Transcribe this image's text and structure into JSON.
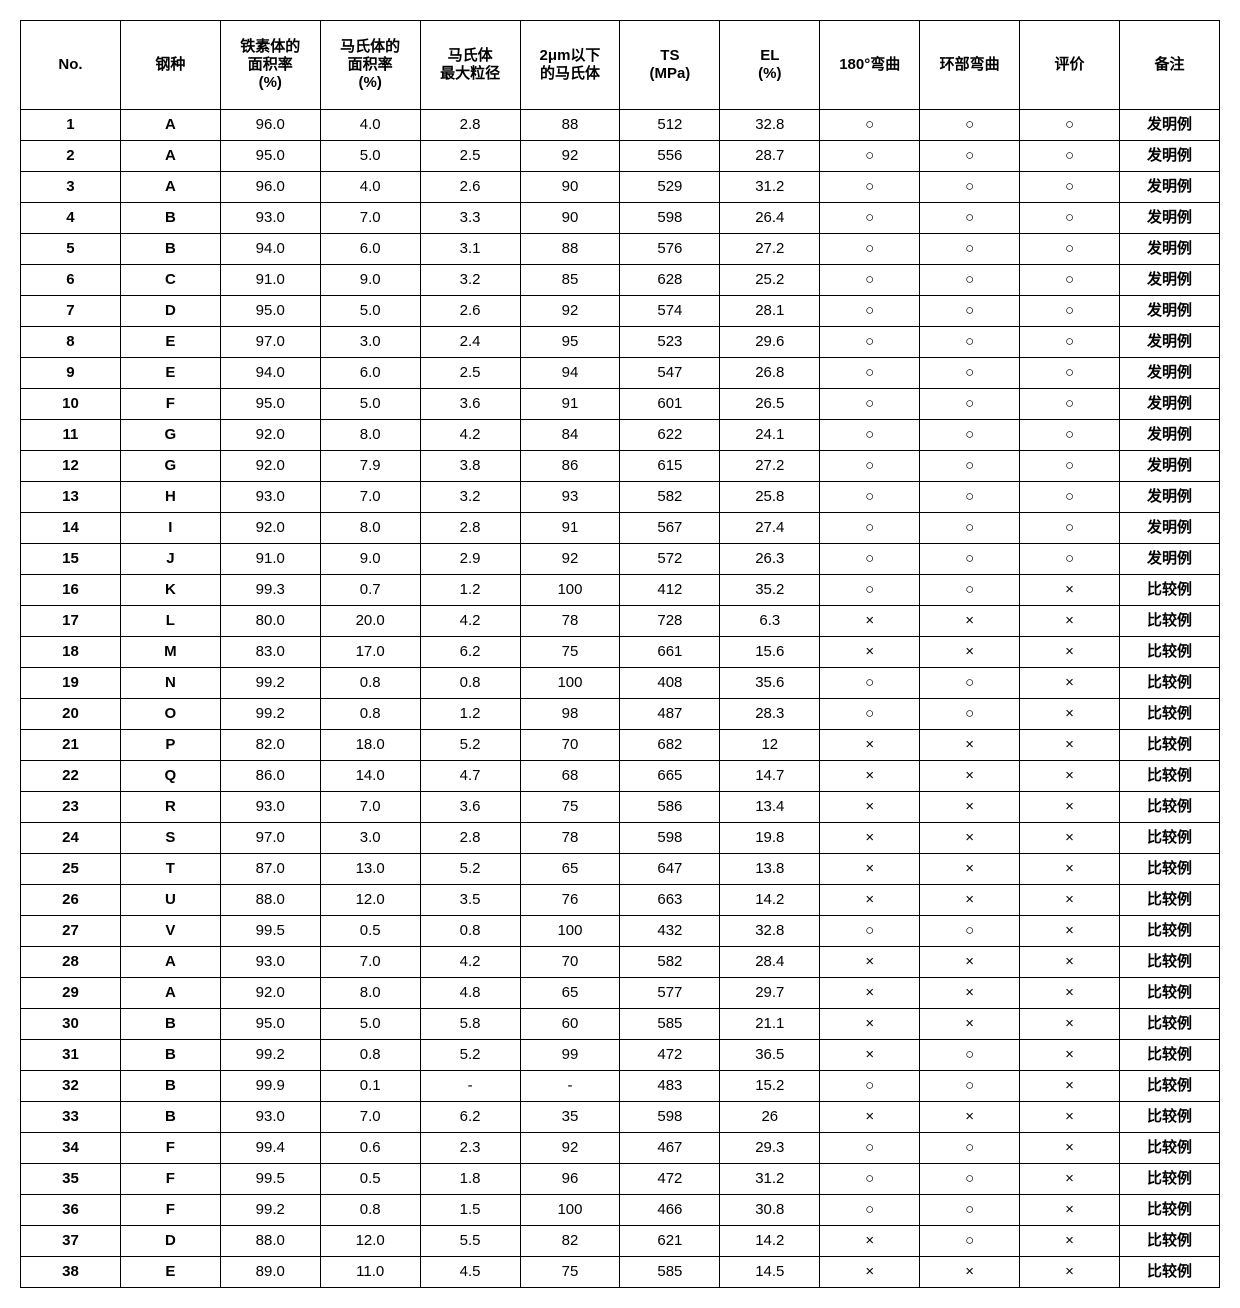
{
  "table": {
    "columns": [
      "No.",
      "钢种",
      "铁素体的\n面积率\n(%)",
      "马氏体的\n面积率\n(%)",
      "马氏体\n最大粒径",
      "2μm以下\n的马氏体",
      "TS\n(MPa)",
      "EL\n(%)",
      "180°弯曲",
      "环部弯曲",
      "评价",
      "备注"
    ],
    "rows": [
      [
        "1",
        "A",
        "96.0",
        "4.0",
        "2.8",
        "88",
        "512",
        "32.8",
        "○",
        "○",
        "○",
        "发明例"
      ],
      [
        "2",
        "A",
        "95.0",
        "5.0",
        "2.5",
        "92",
        "556",
        "28.7",
        "○",
        "○",
        "○",
        "发明例"
      ],
      [
        "3",
        "A",
        "96.0",
        "4.0",
        "2.6",
        "90",
        "529",
        "31.2",
        "○",
        "○",
        "○",
        "发明例"
      ],
      [
        "4",
        "B",
        "93.0",
        "7.0",
        "3.3",
        "90",
        "598",
        "26.4",
        "○",
        "○",
        "○",
        "发明例"
      ],
      [
        "5",
        "B",
        "94.0",
        "6.0",
        "3.1",
        "88",
        "576",
        "27.2",
        "○",
        "○",
        "○",
        "发明例"
      ],
      [
        "6",
        "C",
        "91.0",
        "9.0",
        "3.2",
        "85",
        "628",
        "25.2",
        "○",
        "○",
        "○",
        "发明例"
      ],
      [
        "7",
        "D",
        "95.0",
        "5.0",
        "2.6",
        "92",
        "574",
        "28.1",
        "○",
        "○",
        "○",
        "发明例"
      ],
      [
        "8",
        "E",
        "97.0",
        "3.0",
        "2.4",
        "95",
        "523",
        "29.6",
        "○",
        "○",
        "○",
        "发明例"
      ],
      [
        "9",
        "E",
        "94.0",
        "6.0",
        "2.5",
        "94",
        "547",
        "26.8",
        "○",
        "○",
        "○",
        "发明例"
      ],
      [
        "10",
        "F",
        "95.0",
        "5.0",
        "3.6",
        "91",
        "601",
        "26.5",
        "○",
        "○",
        "○",
        "发明例"
      ],
      [
        "11",
        "G",
        "92.0",
        "8.0",
        "4.2",
        "84",
        "622",
        "24.1",
        "○",
        "○",
        "○",
        "发明例"
      ],
      [
        "12",
        "G",
        "92.0",
        "7.9",
        "3.8",
        "86",
        "615",
        "27.2",
        "○",
        "○",
        "○",
        "发明例"
      ],
      [
        "13",
        "H",
        "93.0",
        "7.0",
        "3.2",
        "93",
        "582",
        "25.8",
        "○",
        "○",
        "○",
        "发明例"
      ],
      [
        "14",
        "I",
        "92.0",
        "8.0",
        "2.8",
        "91",
        "567",
        "27.4",
        "○",
        "○",
        "○",
        "发明例"
      ],
      [
        "15",
        "J",
        "91.0",
        "9.0",
        "2.9",
        "92",
        "572",
        "26.3",
        "○",
        "○",
        "○",
        "发明例"
      ],
      [
        "16",
        "K",
        "99.3",
        "0.7",
        "1.2",
        "100",
        "412",
        "35.2",
        "○",
        "○",
        "×",
        "比较例"
      ],
      [
        "17",
        "L",
        "80.0",
        "20.0",
        "4.2",
        "78",
        "728",
        "6.3",
        "×",
        "×",
        "×",
        "比较例"
      ],
      [
        "18",
        "M",
        "83.0",
        "17.0",
        "6.2",
        "75",
        "661",
        "15.6",
        "×",
        "×",
        "×",
        "比较例"
      ],
      [
        "19",
        "N",
        "99.2",
        "0.8",
        "0.8",
        "100",
        "408",
        "35.6",
        "○",
        "○",
        "×",
        "比较例"
      ],
      [
        "20",
        "O",
        "99.2",
        "0.8",
        "1.2",
        "98",
        "487",
        "28.3",
        "○",
        "○",
        "×",
        "比较例"
      ],
      [
        "21",
        "P",
        "82.0",
        "18.0",
        "5.2",
        "70",
        "682",
        "12",
        "×",
        "×",
        "×",
        "比较例"
      ],
      [
        "22",
        "Q",
        "86.0",
        "14.0",
        "4.7",
        "68",
        "665",
        "14.7",
        "×",
        "×",
        "×",
        "比较例"
      ],
      [
        "23",
        "R",
        "93.0",
        "7.0",
        "3.6",
        "75",
        "586",
        "13.4",
        "×",
        "×",
        "×",
        "比较例"
      ],
      [
        "24",
        "S",
        "97.0",
        "3.0",
        "2.8",
        "78",
        "598",
        "19.8",
        "×",
        "×",
        "×",
        "比较例"
      ],
      [
        "25",
        "T",
        "87.0",
        "13.0",
        "5.2",
        "65",
        "647",
        "13.8",
        "×",
        "×",
        "×",
        "比较例"
      ],
      [
        "26",
        "U",
        "88.0",
        "12.0",
        "3.5",
        "76",
        "663",
        "14.2",
        "×",
        "×",
        "×",
        "比较例"
      ],
      [
        "27",
        "V",
        "99.5",
        "0.5",
        "0.8",
        "100",
        "432",
        "32.8",
        "○",
        "○",
        "×",
        "比较例"
      ],
      [
        "28",
        "A",
        "93.0",
        "7.0",
        "4.2",
        "70",
        "582",
        "28.4",
        "×",
        "×",
        "×",
        "比较例"
      ],
      [
        "29",
        "A",
        "92.0",
        "8.0",
        "4.8",
        "65",
        "577",
        "29.7",
        "×",
        "×",
        "×",
        "比较例"
      ],
      [
        "30",
        "B",
        "95.0",
        "5.0",
        "5.8",
        "60",
        "585",
        "21.1",
        "×",
        "×",
        "×",
        "比较例"
      ],
      [
        "31",
        "B",
        "99.2",
        "0.8",
        "5.2",
        "99",
        "472",
        "36.5",
        "×",
        "○",
        "×",
        "比较例"
      ],
      [
        "32",
        "B",
        "99.9",
        "0.1",
        "-",
        "-",
        "483",
        "15.2",
        "○",
        "○",
        "×",
        "比较例"
      ],
      [
        "33",
        "B",
        "93.0",
        "7.0",
        "6.2",
        "35",
        "598",
        "26",
        "×",
        "×",
        "×",
        "比较例"
      ],
      [
        "34",
        "F",
        "99.4",
        "0.6",
        "2.3",
        "92",
        "467",
        "29.3",
        "○",
        "○",
        "×",
        "比较例"
      ],
      [
        "35",
        "F",
        "99.5",
        "0.5",
        "1.8",
        "96",
        "472",
        "31.2",
        "○",
        "○",
        "×",
        "比较例"
      ],
      [
        "36",
        "F",
        "99.2",
        "0.8",
        "1.5",
        "100",
        "466",
        "30.8",
        "○",
        "○",
        "×",
        "比较例"
      ],
      [
        "37",
        "D",
        "88.0",
        "12.0",
        "5.5",
        "82",
        "621",
        "14.2",
        "×",
        "○",
        "×",
        "比较例"
      ],
      [
        "38",
        "E",
        "89.0",
        "11.0",
        "4.5",
        "75",
        "585",
        "14.5",
        "×",
        "×",
        "×",
        "比较例"
      ]
    ],
    "border_color": "#000000",
    "background_color": "#ffffff",
    "header_fontsize": 15,
    "cell_fontsize": 15
  }
}
